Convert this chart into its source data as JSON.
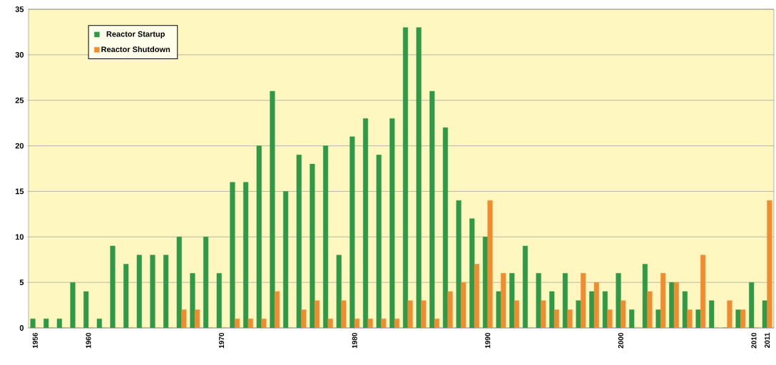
{
  "chart_data": {
    "type": "bar",
    "categories": [
      "1956",
      null,
      null,
      null,
      "1960",
      null,
      null,
      null,
      null,
      null,
      null,
      null,
      null,
      null,
      "1970",
      null,
      null,
      null,
      null,
      null,
      null,
      null,
      null,
      null,
      "1980",
      null,
      null,
      null,
      null,
      null,
      null,
      null,
      null,
      null,
      "1990",
      null,
      null,
      null,
      null,
      null,
      null,
      null,
      null,
      null,
      "2000",
      null,
      null,
      null,
      null,
      null,
      null,
      null,
      null,
      null,
      "2010",
      "2011"
    ],
    "series": [
      {
        "name": "Reactor Startup",
        "color": "#2e9a47",
        "values": [
          1,
          1,
          1,
          5,
          4,
          1,
          9,
          7,
          8,
          8,
          8,
          10,
          6,
          10,
          6,
          16,
          16,
          20,
          26,
          15,
          19,
          18,
          20,
          8,
          21,
          23,
          19,
          23,
          33,
          33,
          26,
          22,
          14,
          12,
          10,
          4,
          6,
          9,
          6,
          4,
          6,
          3,
          4,
          4,
          6,
          2,
          7,
          2,
          5,
          4,
          2,
          3,
          0,
          2,
          5,
          3
        ]
      },
      {
        "name": "Reactor Shutdown",
        "color": "#f08c30",
        "values": [
          0,
          0,
          0,
          0,
          0,
          0,
          0,
          0,
          0,
          0,
          0,
          2,
          2,
          0,
          0,
          1,
          1,
          1,
          4,
          0,
          2,
          3,
          1,
          3,
          1,
          1,
          1,
          1,
          3,
          3,
          1,
          4,
          5,
          7,
          14,
          6,
          3,
          0,
          3,
          2,
          2,
          6,
          5,
          2,
          3,
          0,
          4,
          6,
          5,
          2,
          8,
          0,
          3,
          2,
          0,
          14
        ]
      }
    ],
    "ylim": [
      0,
      35
    ],
    "yticks": [
      0,
      5,
      10,
      15,
      20,
      25,
      30,
      35
    ],
    "grid": "y",
    "legend": "top left"
  }
}
